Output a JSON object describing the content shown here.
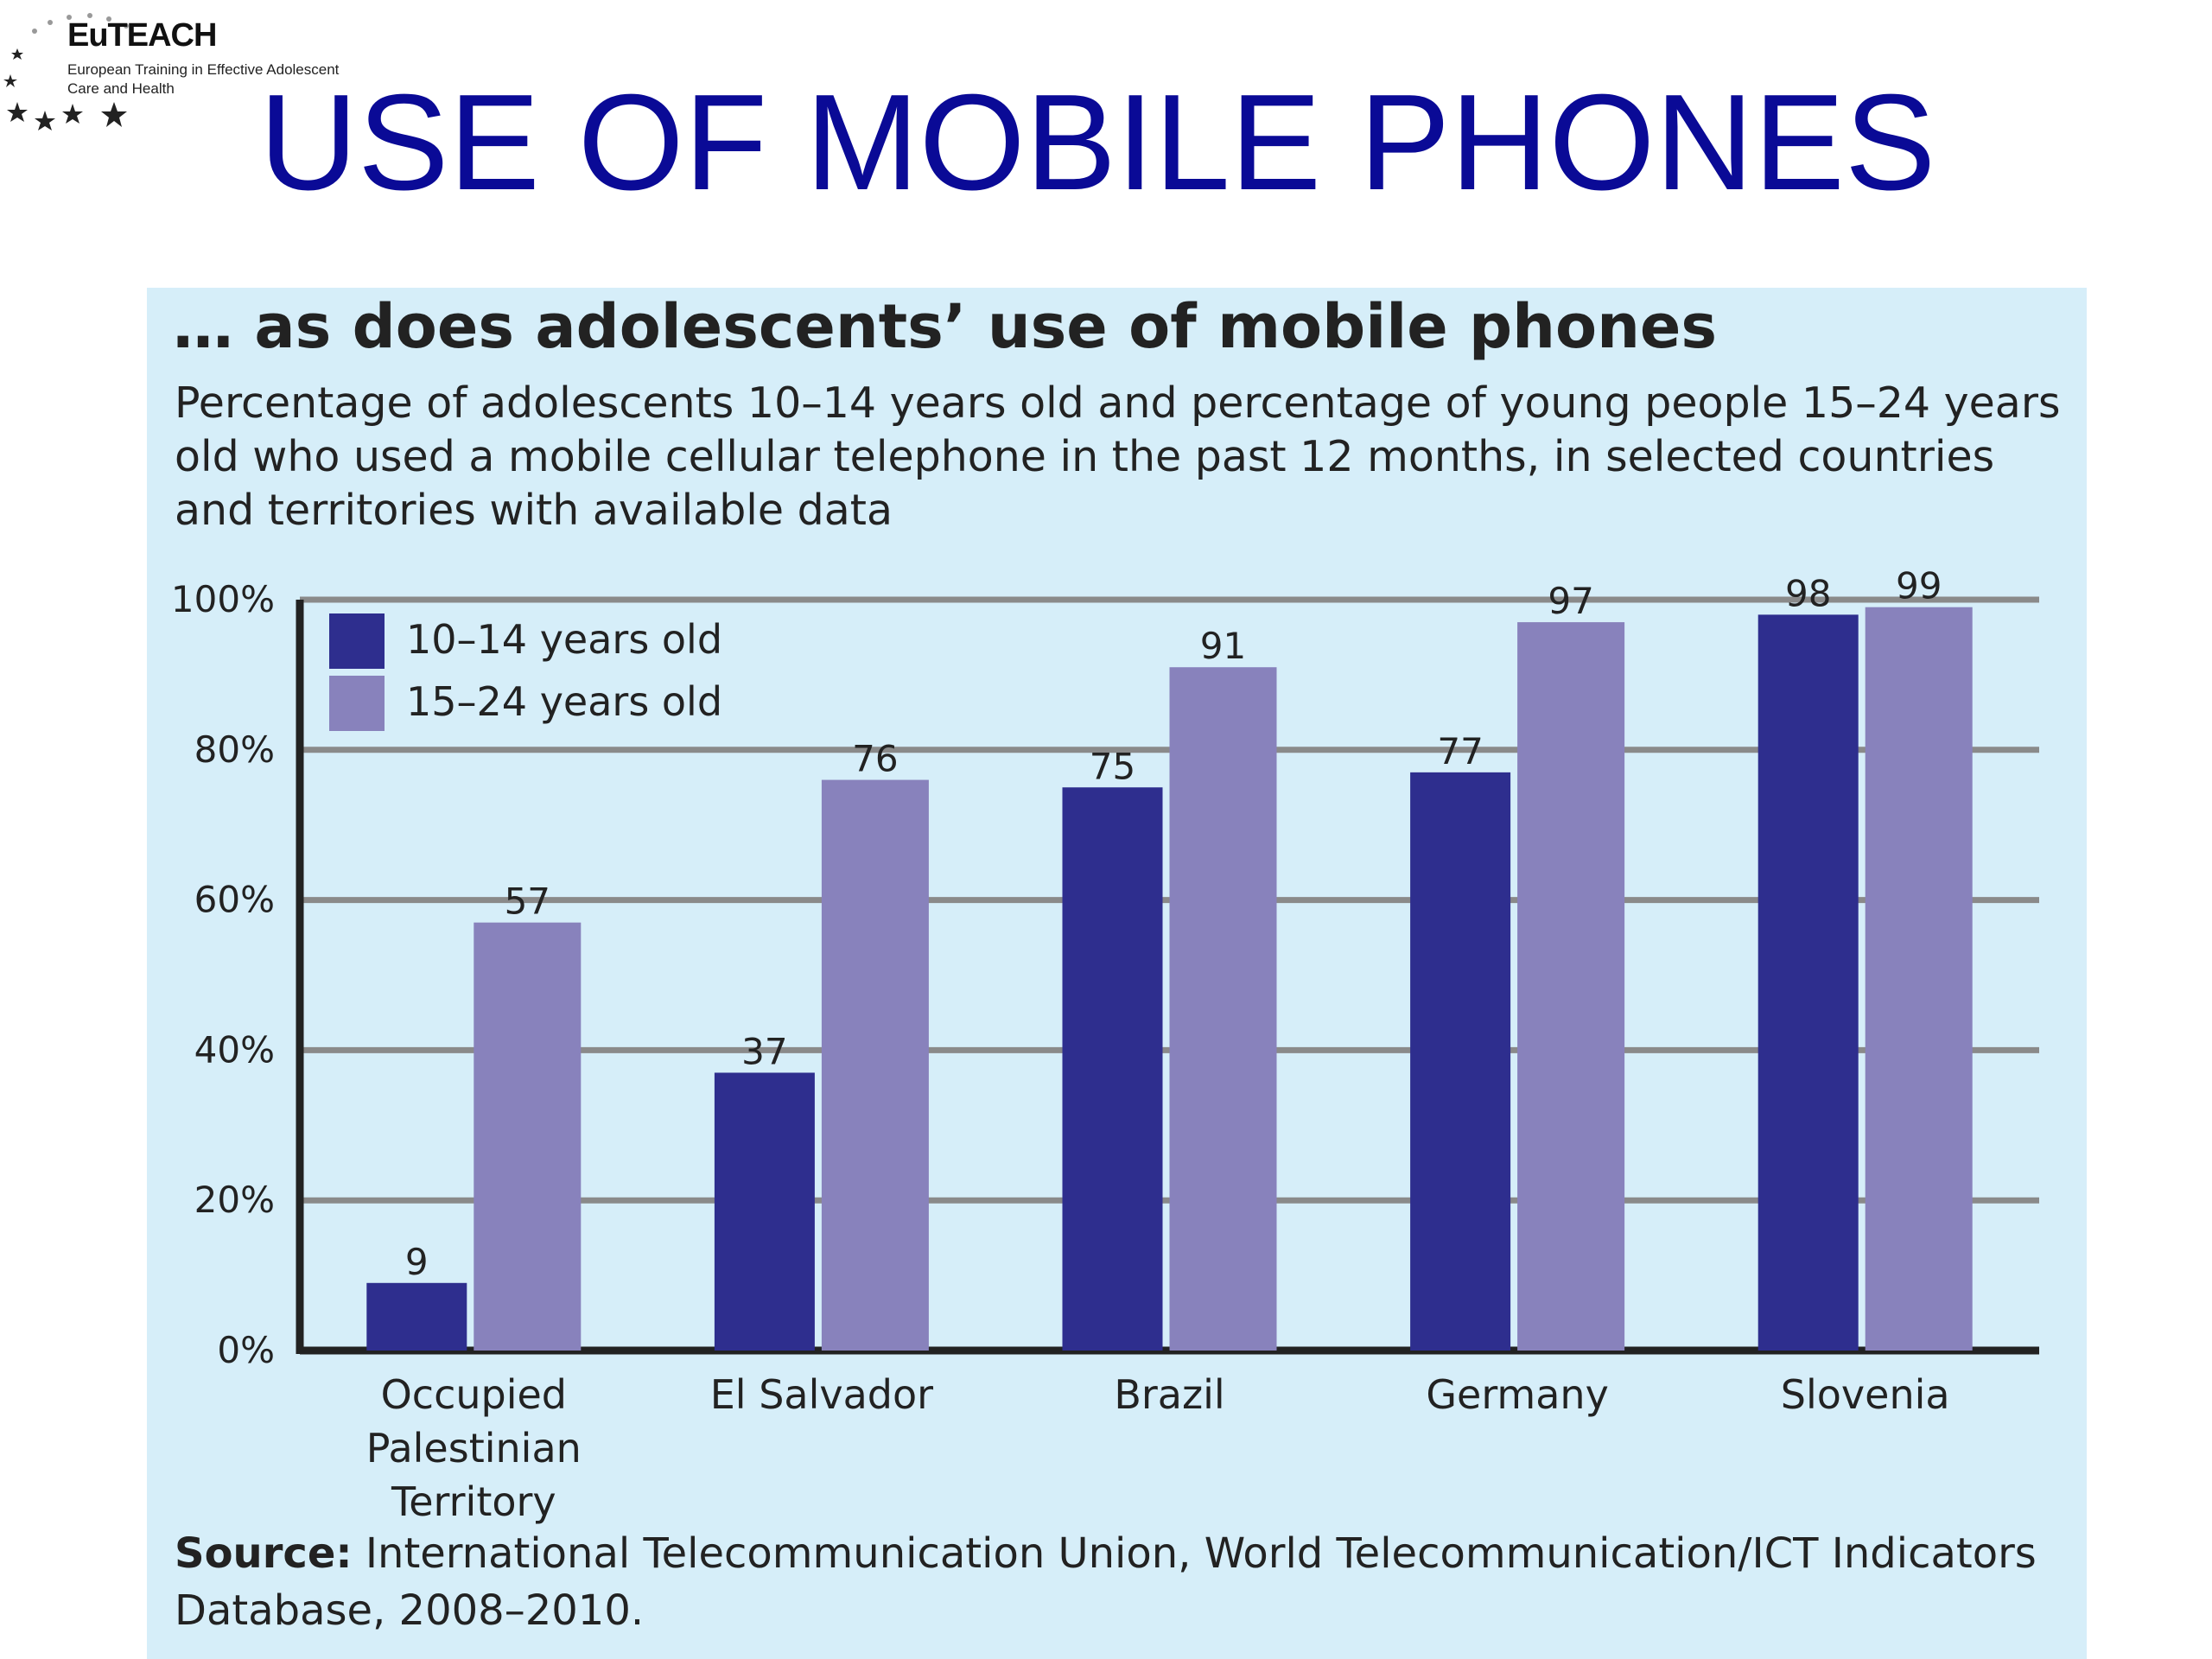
{
  "logo": {
    "name": "EuTEACH",
    "tagline": "European Training in Effective Adolescent Care and Health"
  },
  "slide_title": "USE OF MOBILE PHONES",
  "panel": {
    "heading": "… as does adolescents’ use of mobile phones",
    "subheading": "Percentage of adolescents 10–14 years old and percentage of young people 15–24 years old who used a mobile cellular telephone in the past 12 months, in selected countries and territories with available data",
    "source_label": "Source:",
    "source_text": "International Telecommunication Union, World Telecommunication/ICT Indicators Database, 2008–2010."
  },
  "colors": {
    "series_10_14": "#2e2e8e",
    "series_15_24": "#8882bc",
    "panel_bg": "#d6eef9",
    "title": "#0a0a96",
    "grid": "#8a8a8a"
  },
  "chart_data": {
    "type": "bar",
    "title": "",
    "xlabel": "",
    "ylabel": "",
    "ylim": [
      0,
      100
    ],
    "y_ticks": [
      "0%",
      "20%",
      "40%",
      "60%",
      "80%",
      "100%"
    ],
    "grid": true,
    "legend_position": "top-left",
    "categories": [
      [
        "Occupied",
        "Palestinian",
        "Territory"
      ],
      [
        "El Salvador"
      ],
      [
        "Brazil"
      ],
      [
        "Germany"
      ],
      [
        "Slovenia"
      ]
    ],
    "series": [
      {
        "name": "10–14 years old",
        "values": [
          9,
          37,
          75,
          77,
          98
        ],
        "labels": [
          "9",
          "37",
          "75",
          "77",
          "98"
        ]
      },
      {
        "name": "15–24 years old",
        "values": [
          57,
          76,
          91,
          97,
          99
        ],
        "labels": [
          "57",
          "76",
          "91",
          "97",
          "99"
        ]
      }
    ]
  }
}
